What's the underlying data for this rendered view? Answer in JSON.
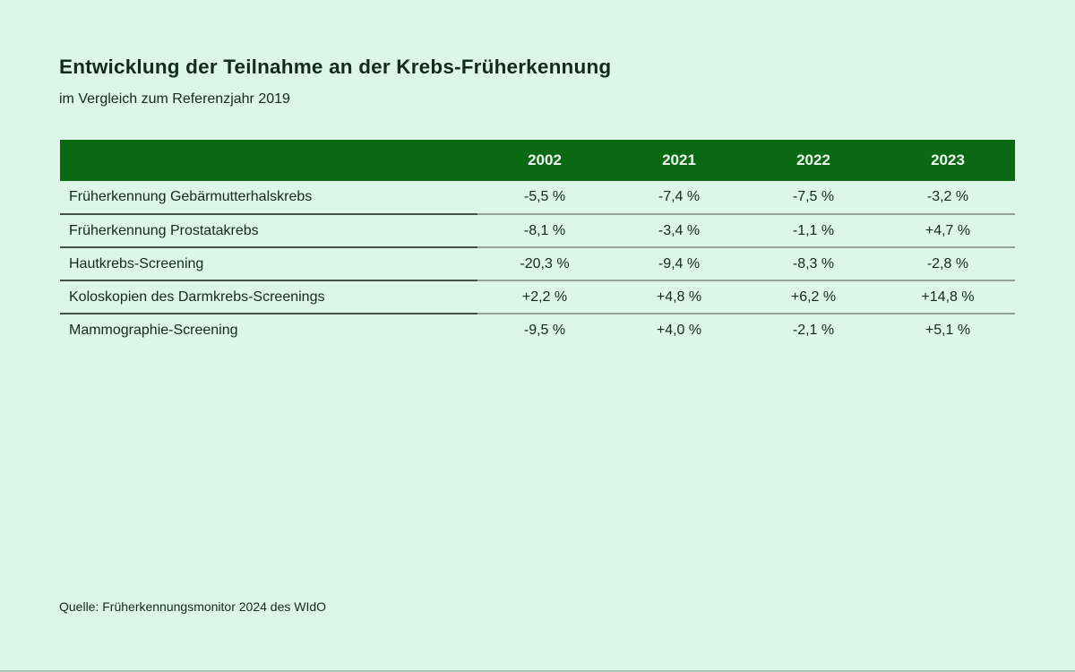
{
  "page": {
    "title": "Entwicklung der Teilnahme an der Krebs-Früherkennung",
    "subtitle": "im Vergleich zum Referenzjahr 2019",
    "source": "Quelle: Früherkennungsmonitor 2024 des WIdO"
  },
  "colors": {
    "background": "#DCF7E7",
    "header_background": "#0B6914",
    "header_text": "#F2F8F2",
    "body_text": "#14291F",
    "divider_dark": "#42534B",
    "divider_light": "#91A39A",
    "bottom_edge": "#A7C6B5"
  },
  "table": {
    "columns": [
      "2002",
      "2021",
      "2022",
      "2023"
    ],
    "rows": [
      {
        "label": "Früherkennung Gebärmutterhalskrebs",
        "values": [
          "-5,5 %",
          "-7,4 %",
          "-7,5 %",
          "-3,2 %"
        ]
      },
      {
        "label": "Früherkennung Prostatakrebs",
        "values": [
          "-8,1 %",
          "-3,4 %",
          "-1,1 %",
          "+4,7 %"
        ]
      },
      {
        "label": "Hautkrebs-Screening",
        "values": [
          "-20,3 %",
          "-9,4 %",
          "-8,3 %",
          "-2,8 %"
        ]
      },
      {
        "label": "Koloskopien des Darmkrebs-Screenings",
        "values": [
          "+2,2 %",
          "+4,8 %",
          "+6,2 %",
          "+14,8 %"
        ]
      },
      {
        "label": "Mammographie-Screening",
        "values": [
          "-9,5 %",
          "+4,0 %",
          "-2,1 %",
          "+5,1 %"
        ]
      }
    ]
  },
  "chart_data": {
    "type": "table",
    "title": "Entwicklung der Teilnahme an der Krebs-Früherkennung",
    "subtitle": "im Vergleich zum Referenzjahr 2019",
    "columns": [
      "2002",
      "2021",
      "2022",
      "2023"
    ],
    "rows": [
      {
        "label": "Früherkennung Gebärmutterhalskrebs",
        "values_percent": [
          -5.5,
          -7.4,
          -7.5,
          -3.2
        ]
      },
      {
        "label": "Früherkennung Prostatakrebs",
        "values_percent": [
          -8.1,
          -3.4,
          -1.1,
          4.7
        ]
      },
      {
        "label": "Hautkrebs-Screening",
        "values_percent": [
          -20.3,
          -9.4,
          -8.3,
          -2.8
        ]
      },
      {
        "label": "Koloskopien des Darmkrebs-Screenings",
        "values_percent": [
          2.2,
          4.8,
          6.2,
          14.8
        ]
      },
      {
        "label": "Mammographie-Screening",
        "values_percent": [
          -9.5,
          4.0,
          -2.1,
          5.1
        ]
      }
    ],
    "source": "Quelle: Früherkennungsmonitor 2024 des WIdO"
  }
}
